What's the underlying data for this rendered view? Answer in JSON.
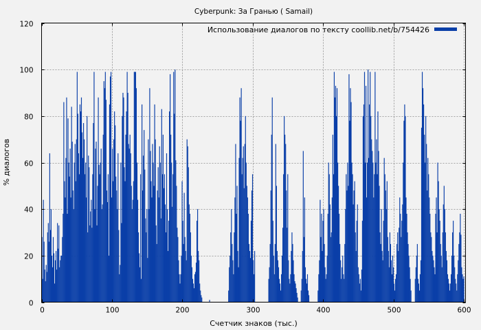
{
  "chart_data": {
    "type": "bar",
    "title": "Cyberpunk: За Гранью ( Samail)",
    "xlabel": "Счетчик знаков (тыс.)",
    "ylabel": "% диалогов",
    "xlim": [
      0,
      602
    ],
    "ylim": [
      0,
      120
    ],
    "xticks": [
      0,
      100,
      200,
      300,
      400,
      500,
      600
    ],
    "yticks": [
      0,
      20,
      40,
      60,
      80,
      100,
      120
    ],
    "grid": true,
    "legend": {
      "placement": "top-right"
    },
    "series": [
      {
        "name": "Использование диалогов по тексту coollib.net/b/754426",
        "color": "#0a3fa8",
        "bin_width": 1,
        "x_start": 0,
        "values": [
          28,
          10,
          44,
          26,
          14,
          9,
          16,
          13,
          30,
          34,
          26,
          64,
          31,
          40,
          20,
          15,
          28,
          21,
          8,
          18,
          22,
          14,
          34,
          23,
          33,
          15,
          18,
          20,
          20,
          28,
          38,
          86,
          52,
          45,
          62,
          88,
          38,
          79,
          60,
          54,
          66,
          45,
          84,
          69,
          48,
          40,
          60,
          68,
          52,
          70,
          99,
          81,
          64,
          55,
          85,
          82,
          88,
          73,
          62,
          77,
          70,
          55,
          60,
          45,
          80,
          30,
          63,
          58,
          33,
          39,
          44,
          32,
          55,
          77,
          99,
          40,
          66,
          69,
          33,
          50,
          88,
          59,
          55,
          60,
          66,
          40,
          42,
          72,
          95,
          92,
          99,
          87,
          48,
          43,
          55,
          20,
          85,
          97,
          99,
          45,
          66,
          52,
          70,
          82,
          76,
          54,
          48,
          40,
          64,
          31,
          12,
          16,
          60,
          34,
          80,
          90,
          88,
          58,
          52,
          72,
          82,
          99,
          90,
          68,
          66,
          72,
          64,
          50,
          40,
          44,
          52,
          99,
          99,
          99,
          92,
          60,
          44,
          30,
          21,
          15,
          55,
          10,
          85,
          48,
          63,
          74,
          57,
          36,
          30,
          40,
          19,
          70,
          40,
          92,
          65,
          52,
          45,
          68,
          60,
          50,
          85,
          70,
          33,
          25,
          48,
          58,
          45,
          67,
          60,
          36,
          83,
          55,
          72,
          49,
          55,
          42,
          30,
          64,
          40,
          22,
          35,
          82,
          98,
          72,
          60,
          41,
          55,
          99,
          81,
          100,
          61,
          50,
          32,
          28,
          18,
          12,
          8,
          12,
          20,
          52,
          35,
          25,
          47,
          28,
          22,
          18,
          70,
          67,
          58,
          42,
          38,
          30,
          20,
          15,
          10,
          8,
          6,
          12,
          13,
          17,
          35,
          40,
          22,
          18,
          8,
          5,
          3,
          2,
          0,
          0,
          0,
          0,
          0,
          0,
          0,
          0,
          0,
          0,
          1,
          0,
          0,
          0,
          0,
          0,
          0,
          0,
          0,
          0,
          0,
          0,
          0,
          0,
          0,
          0,
          0,
          0,
          0,
          0,
          0,
          0,
          0,
          0,
          0,
          0,
          0,
          5,
          15,
          20,
          30,
          40,
          25,
          18,
          12,
          30,
          45,
          68,
          38,
          50,
          22,
          15,
          62,
          88,
          78,
          92,
          55,
          62,
          67,
          49,
          68,
          80,
          60,
          50,
          45,
          38,
          25,
          22,
          19,
          35,
          48,
          55,
          18,
          12,
          22,
          0,
          0,
          0,
          0,
          0,
          0,
          0,
          0,
          0,
          0,
          0,
          0,
          0,
          0,
          0,
          0,
          0,
          0,
          0,
          10,
          15,
          25,
          48,
          72,
          88,
          35,
          20,
          12,
          25,
          68,
          50,
          22,
          18,
          15,
          10,
          8,
          5,
          12,
          20,
          32,
          55,
          80,
          72,
          68,
          48,
          32,
          55,
          18,
          10,
          8,
          12,
          22,
          30,
          25,
          18,
          12,
          9,
          8,
          6,
          4,
          2,
          0,
          0,
          0,
          0,
          5,
          10,
          22,
          65,
          28,
          45,
          15,
          10,
          8,
          12,
          5,
          3,
          0,
          0,
          0,
          0,
          0,
          0,
          0,
          0,
          0,
          0,
          0,
          0,
          5,
          12,
          18,
          44,
          28,
          38,
          22,
          35,
          40,
          25,
          15,
          10,
          12,
          20,
          38,
          60,
          55,
          42,
          28,
          30,
          45,
          72,
          55,
          99,
          88,
          93,
          80,
          92,
          60,
          50,
          38,
          25,
          18,
          10,
          15,
          20,
          12,
          10,
          25,
          40,
          55,
          48,
          60,
          50,
          98,
          78,
          92,
          86,
          60,
          55,
          42,
          48,
          52,
          30,
          22,
          35,
          42,
          15,
          12,
          8,
          10,
          5,
          14,
          35,
          80,
          85,
          99,
          60,
          93,
          45,
          60,
          100,
          62,
          85,
          99,
          80,
          70,
          65,
          60,
          45,
          55,
          99,
          60,
          70,
          55,
          82,
          65,
          50,
          30,
          25,
          40,
          22,
          18,
          35,
          62,
          55,
          48,
          40,
          52,
          28,
          22,
          15,
          30,
          25,
          18,
          12,
          20,
          15,
          8,
          5,
          10,
          12,
          25,
          30,
          22,
          32,
          45,
          38,
          28,
          35,
          42,
          60,
          78,
          85,
          80,
          45,
          38,
          30,
          25,
          20,
          15,
          10,
          5,
          0,
          0,
          0,
          0,
          0,
          10,
          15,
          20,
          25,
          10,
          8,
          5,
          12,
          18,
          75,
          99,
          92,
          85,
          72,
          60,
          80,
          68,
          48,
          62,
          55,
          45,
          38,
          30,
          28,
          22,
          20,
          18,
          15,
          12,
          38,
          45,
          30,
          60,
          52,
          40,
          35,
          25,
          20,
          15,
          30,
          42,
          50,
          40,
          30,
          22,
          18,
          12,
          10,
          8,
          5,
          8,
          12,
          20,
          30,
          35,
          20,
          15,
          10,
          8,
          5,
          12,
          18,
          25,
          30,
          38,
          29,
          15,
          12,
          10,
          11
        ]
      }
    ]
  }
}
